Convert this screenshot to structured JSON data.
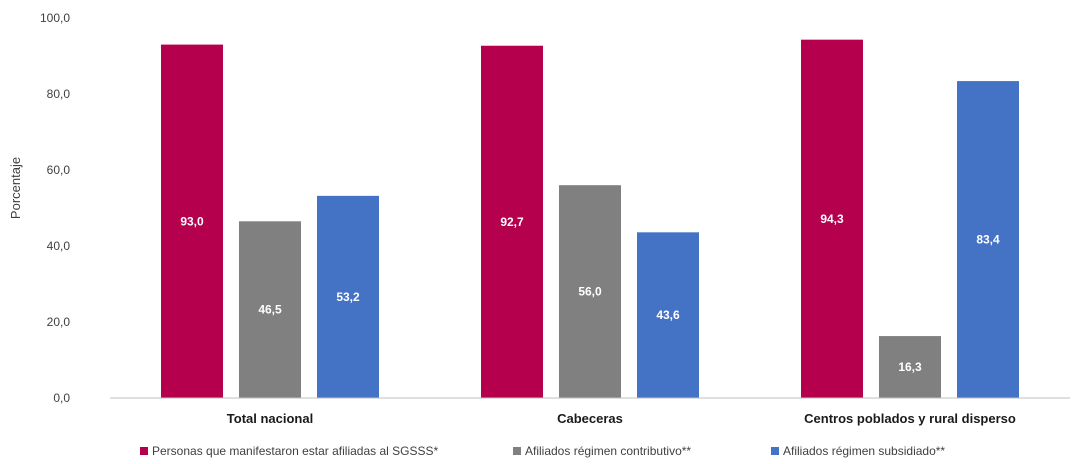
{
  "chart_data": {
    "type": "bar",
    "categories": [
      "Total nacional",
      "Cabeceras",
      "Centros poblados y rural disperso"
    ],
    "series": [
      {
        "name": "Personas que manifestaron estar afiliadas al SGSSS*",
        "values": [
          93.0,
          92.7,
          94.3
        ],
        "labels": [
          "93,0",
          "92,7",
          "94,3"
        ],
        "color": "#B5004D"
      },
      {
        "name": "Afiliados régimen contributivo**",
        "values": [
          46.5,
          56.0,
          16.3
        ],
        "labels": [
          "46,5",
          "56,0",
          "16,3"
        ],
        "color": "#808080"
      },
      {
        "name": "Afiliados régimen subsidiado**",
        "values": [
          53.2,
          43.6,
          83.4
        ],
        "labels": [
          "53,2",
          "43,6",
          "83,4"
        ],
        "color": "#4472C4"
      }
    ],
    "ylabel": "Porcentaje",
    "ylim": [
      0,
      100
    ],
    "yticks": [
      0,
      20,
      40,
      60,
      80,
      100
    ],
    "ytick_labels": [
      "0,0",
      "20,0",
      "40,0",
      "60,0",
      "80,0",
      "100,0"
    ],
    "grid": false,
    "legend_position": "bottom"
  }
}
